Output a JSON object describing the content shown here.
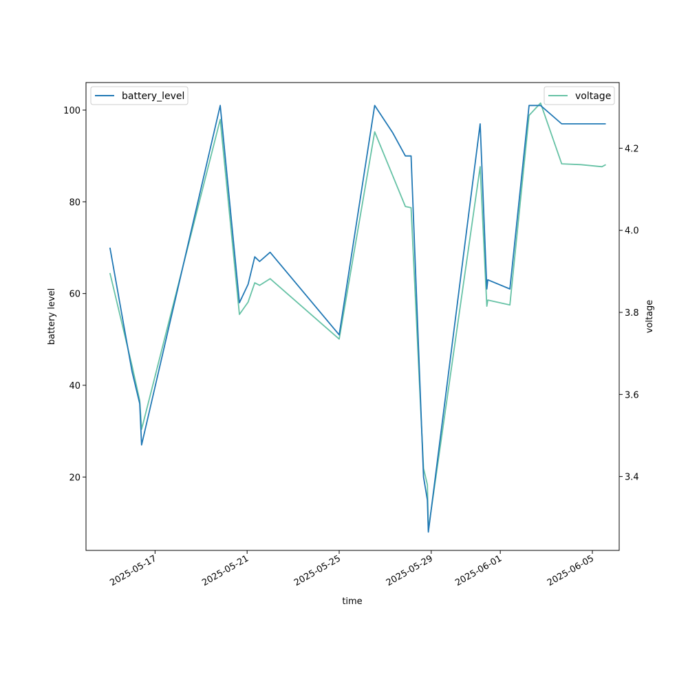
{
  "chart_data": {
    "type": "line",
    "title": "",
    "xlabel": "time",
    "ylabel_left": "battery level",
    "ylabel_right": "voltage",
    "x_ticks": [
      "2025-05-17",
      "2025-05-21",
      "2025-05-25",
      "2025-05-29",
      "2025-06-01",
      "2025-06-05"
    ],
    "y_ticks_left": [
      20,
      40,
      60,
      80,
      100
    ],
    "y_ticks_right": [
      "3.4",
      "3.6",
      "3.8",
      "4.0",
      "4.2"
    ],
    "xlim": [
      "2025-05-14 00:00",
      "2025-06-06 04:00"
    ],
    "ylim_left": [
      4,
      106
    ],
    "ylim_right": [
      3.22,
      4.36
    ],
    "grid": false,
    "legend_left": "top-left",
    "legend_right": "top-right",
    "series": [
      {
        "name": "battery_level",
        "axis": "left",
        "color": "#1f77b4",
        "points": [
          [
            "2025-05-15 01:00",
            70
          ],
          [
            "2025-05-16 00:00",
            43
          ],
          [
            "2025-05-16 08:00",
            36
          ],
          [
            "2025-05-16 10:00",
            27
          ],
          [
            "2025-05-19 20:00",
            101
          ],
          [
            "2025-05-20 16:00",
            58
          ],
          [
            "2025-05-21 01:00",
            62
          ],
          [
            "2025-05-21 08:00",
            68
          ],
          [
            "2025-05-21 13:00",
            67
          ],
          [
            "2025-05-22 00:00",
            69
          ],
          [
            "2025-05-25 00:00",
            51
          ],
          [
            "2025-05-26 13:00",
            101
          ],
          [
            "2025-05-27 08:00",
            95
          ],
          [
            "2025-05-27 21:00",
            90
          ],
          [
            "2025-05-28 03:00",
            90
          ],
          [
            "2025-05-28 16:00",
            20
          ],
          [
            "2025-05-28 20:00",
            15
          ],
          [
            "2025-05-28 21:00",
            8
          ],
          [
            "2025-05-31 03:00",
            97
          ],
          [
            "2025-05-31 10:00",
            61
          ],
          [
            "2025-05-31 11:00",
            63
          ],
          [
            "2025-06-01 10:00",
            61
          ],
          [
            "2025-06-02 06:00",
            101
          ],
          [
            "2025-06-02 18:00",
            101
          ],
          [
            "2025-06-03 16:00",
            97
          ],
          [
            "2025-06-04 12:00",
            97
          ],
          [
            "2025-06-05 14:00",
            97
          ]
        ]
      },
      {
        "name": "voltage",
        "axis": "right",
        "color": "#66c2a5",
        "points": [
          [
            "2025-05-15 01:00",
            3.896
          ],
          [
            "2025-05-16 00:00",
            3.67
          ],
          [
            "2025-05-16 08:00",
            3.585
          ],
          [
            "2025-05-16 10:00",
            3.515
          ],
          [
            "2025-05-19 20:00",
            4.27
          ],
          [
            "2025-05-20 16:00",
            3.795
          ],
          [
            "2025-05-21 01:00",
            3.825
          ],
          [
            "2025-05-21 08:00",
            3.872
          ],
          [
            "2025-05-21 13:00",
            3.866
          ],
          [
            "2025-05-22 00:00",
            3.882
          ],
          [
            "2025-05-25 00:00",
            3.735
          ],
          [
            "2025-05-26 13:00",
            4.24
          ],
          [
            "2025-05-27 21:00",
            4.058
          ],
          [
            "2025-05-28 03:00",
            4.055
          ],
          [
            "2025-05-28 16:00",
            3.42
          ],
          [
            "2025-05-28 20:00",
            3.38
          ],
          [
            "2025-05-28 21:00",
            3.27
          ],
          [
            "2025-05-31 03:00",
            4.155
          ],
          [
            "2025-05-31 10:00",
            3.815
          ],
          [
            "2025-05-31 11:00",
            3.83
          ],
          [
            "2025-06-01 10:00",
            3.818
          ],
          [
            "2025-06-02 06:00",
            4.28
          ],
          [
            "2025-06-02 18:00",
            4.31
          ],
          [
            "2025-06-03 16:00",
            4.162
          ],
          [
            "2025-06-04 12:00",
            4.16
          ],
          [
            "2025-06-05 10:00",
            4.155
          ],
          [
            "2025-06-05 14:00",
            4.16
          ]
        ]
      }
    ]
  }
}
